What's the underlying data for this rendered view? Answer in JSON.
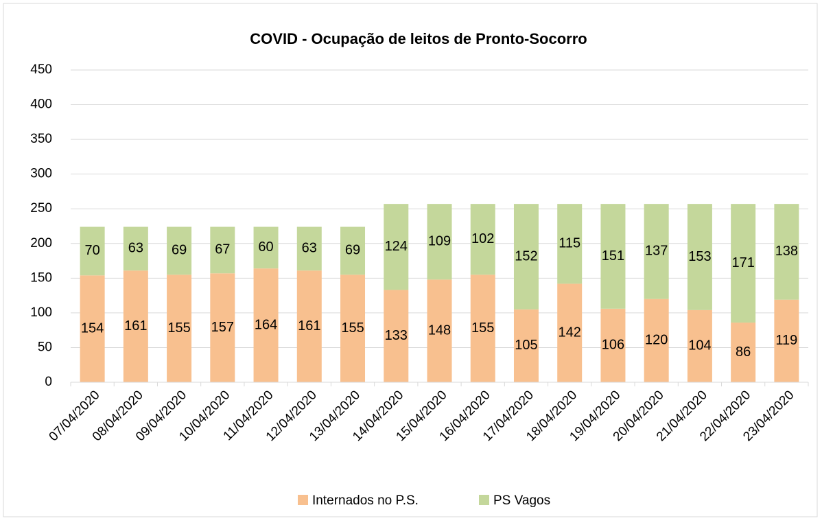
{
  "chart_data": {
    "type": "stacked_bar",
    "title": "COVID - Ocupação de leitos de Pronto-Socorro",
    "categories": [
      "07/04/2020",
      "08/04/2020",
      "09/04/2020",
      "10/04/2020",
      "11/04/2020",
      "12/04/2020",
      "13/04/2020",
      "14/04/2020",
      "15/04/2020",
      "16/04/2020",
      "17/04/2020",
      "18/04/2020",
      "19/04/2020",
      "20/04/2020",
      "21/04/2020",
      "22/04/2020",
      "23/04/2020"
    ],
    "series": [
      {
        "name": "Internados no P.S.",
        "color": "#f8c08f",
        "values": [
          154,
          161,
          155,
          157,
          164,
          161,
          155,
          133,
          148,
          155,
          105,
          142,
          106,
          120,
          104,
          86,
          119
        ]
      },
      {
        "name": "PS Vagos",
        "color": "#c4d79b",
        "values": [
          70,
          63,
          69,
          67,
          60,
          63,
          69,
          124,
          109,
          102,
          152,
          115,
          151,
          137,
          153,
          171,
          138
        ]
      }
    ],
    "ylim": [
      0,
      450
    ],
    "yticks": [
      0,
      50,
      100,
      150,
      200,
      250,
      300,
      350,
      400,
      450
    ],
    "grid": true,
    "legend": "bottom"
  }
}
